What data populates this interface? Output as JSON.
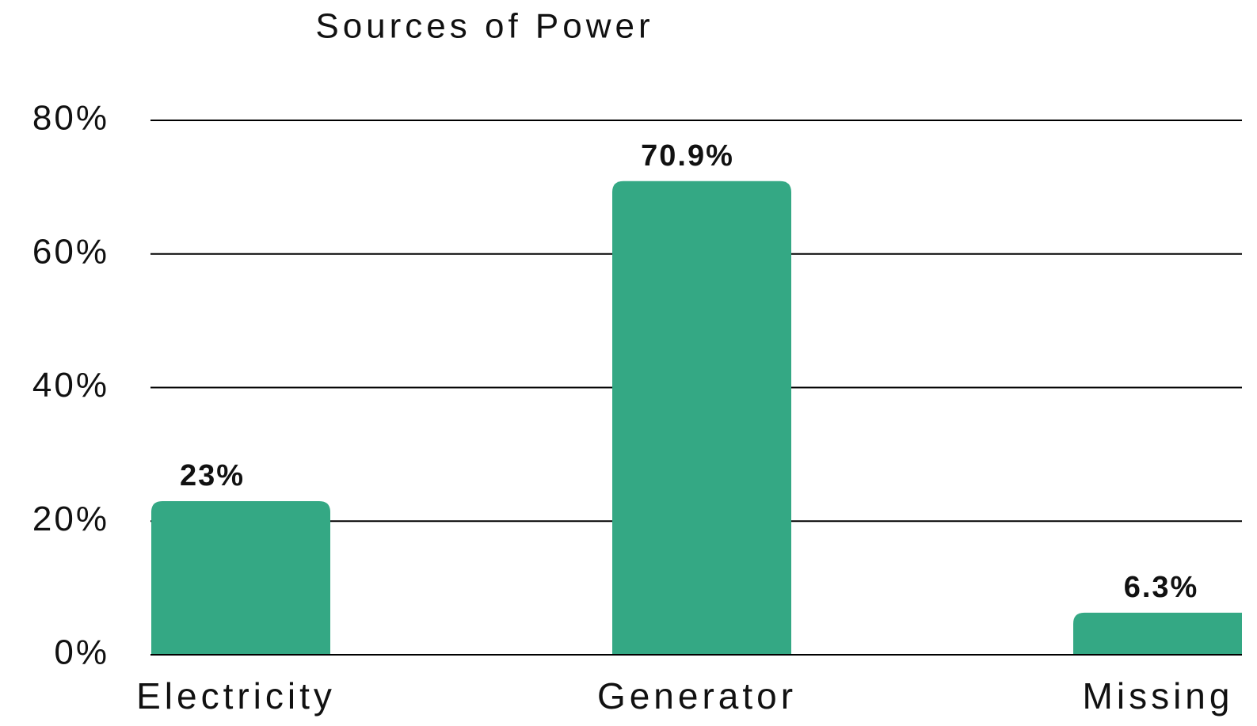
{
  "chart_data": {
    "type": "bar",
    "title": "Sources of Power",
    "categories": [
      "Electricity",
      "Generator",
      "Missing"
    ],
    "values": [
      23,
      70.9,
      6.3
    ],
    "value_labels": [
      "23%",
      "70.9%",
      "6.3%"
    ],
    "color": "#34a884",
    "ylim": [
      0,
      80
    ],
    "yticks": [
      {
        "value": 0,
        "label": "0%"
      },
      {
        "value": 20,
        "label": "20%"
      },
      {
        "value": 40,
        "label": "40%"
      },
      {
        "value": 60,
        "label": "60%"
      },
      {
        "value": 80,
        "label": "80%"
      }
    ],
    "grid": true
  }
}
